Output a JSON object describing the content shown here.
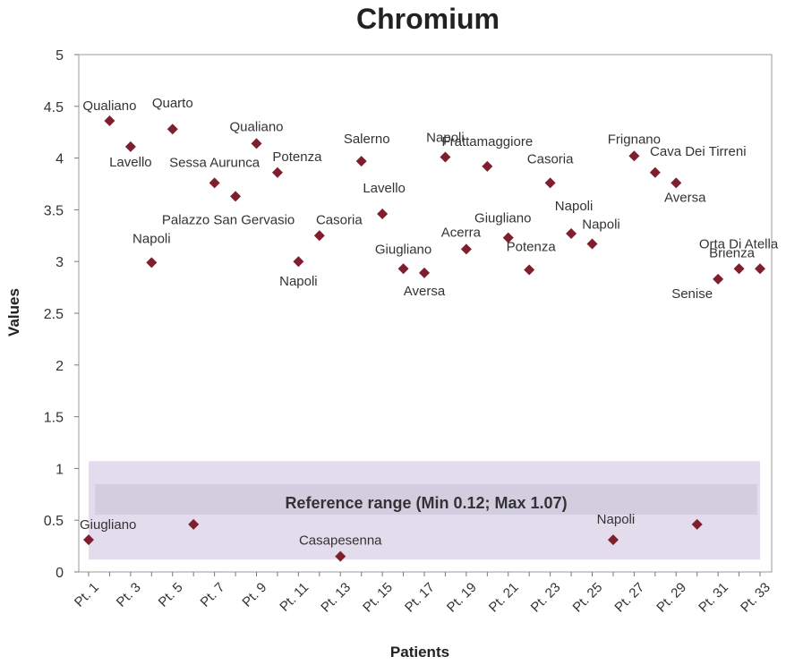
{
  "chart_data": {
    "type": "scatter",
    "title": "Chromium",
    "xlabel": "Patients",
    "ylabel": "Values",
    "ylim": [
      0,
      5
    ],
    "yticks": [
      "0",
      "0.5",
      "1",
      "1.5",
      "2",
      "2.5",
      "3",
      "3.5",
      "4",
      "4.5",
      "5"
    ],
    "xtick_labels": [
      "Pt. 1",
      "Pt. 3",
      "Pt. 5",
      "Pt. 7",
      "Pt. 9",
      "Pt. 11",
      "Pt. 13",
      "Pt. 15",
      "Pt. 17",
      "Pt. 19",
      "Pt. 21",
      "Pt. 23",
      "Pt. 25",
      "Pt. 27",
      "Pt. 29",
      "Pt. 31",
      "Pt. 33"
    ],
    "grid": false,
    "marker_color": "#7f1f2e",
    "reference_range": {
      "min": 0.12,
      "max": 1.07,
      "label": "Reference range (Min 0.12; Max 1.07)",
      "color": "#e2dcec"
    },
    "points": [
      {
        "x": "Pt. 1",
        "y": 0.31,
        "label": "Giugliano"
      },
      {
        "x": "Pt. 2",
        "y": 4.36,
        "label": "Qualiano"
      },
      {
        "x": "Pt. 3",
        "y": 4.11,
        "label": "Lavello"
      },
      {
        "x": "Pt. 4",
        "y": 2.99,
        "label": "Napoli"
      },
      {
        "x": "Pt. 5",
        "y": 4.28,
        "label": "Quarto"
      },
      {
        "x": "Pt. 6",
        "y": 0.46,
        "label": ""
      },
      {
        "x": "Pt. 7",
        "y": 3.76,
        "label": "Sessa Aurunca"
      },
      {
        "x": "Pt. 8",
        "y": 3.63,
        "label": "Palazzo San Gervasio"
      },
      {
        "x": "Pt. 9",
        "y": 4.14,
        "label": "Qualiano"
      },
      {
        "x": "Pt. 10",
        "y": 3.86,
        "label": "Potenza"
      },
      {
        "x": "Pt. 11",
        "y": 3.0,
        "label": "Napoli"
      },
      {
        "x": "Pt. 12",
        "y": 3.25,
        "label": "Casoria"
      },
      {
        "x": "Pt. 13",
        "y": 0.15,
        "label": "Casapesenna"
      },
      {
        "x": "Pt. 14",
        "y": 3.97,
        "label": "Salerno"
      },
      {
        "x": "Pt. 15",
        "y": 3.46,
        "label": "Lavello"
      },
      {
        "x": "Pt. 16",
        "y": 2.93,
        "label": "Giugliano"
      },
      {
        "x": "Pt. 17",
        "y": 2.89,
        "label": "Aversa"
      },
      {
        "x": "Pt. 18",
        "y": 4.01,
        "label": "Napoli"
      },
      {
        "x": "Pt. 19",
        "y": 3.12,
        "label": "Acerra"
      },
      {
        "x": "Pt. 20",
        "y": 3.92,
        "label": "Frattamaggiore"
      },
      {
        "x": "Pt. 21",
        "y": 3.23,
        "label": "Giugliano"
      },
      {
        "x": "Pt. 22",
        "y": 2.92,
        "label": "Potenza"
      },
      {
        "x": "Pt. 23",
        "y": 3.76,
        "label": "Casoria"
      },
      {
        "x": "Pt. 24",
        "y": 3.27,
        "label": "Napoli"
      },
      {
        "x": "Pt. 25",
        "y": 3.17,
        "label": "Napoli"
      },
      {
        "x": "Pt. 26",
        "y": 0.31,
        "label": "Napoli"
      },
      {
        "x": "Pt. 27",
        "y": 4.02,
        "label": "Frignano"
      },
      {
        "x": "Pt. 28",
        "y": 3.86,
        "label": "Cava Dei Tirreni"
      },
      {
        "x": "Pt. 29",
        "y": 3.76,
        "label": "Aversa"
      },
      {
        "x": "Pt. 30",
        "y": 0.46,
        "label": ""
      },
      {
        "x": "Pt. 31",
        "y": 2.83,
        "label": "Senise"
      },
      {
        "x": "Pt. 32",
        "y": 2.93,
        "label": "Brienza"
      },
      {
        "x": "Pt. 33",
        "y": 2.93,
        "label": "Orta Di Atella"
      }
    ]
  }
}
